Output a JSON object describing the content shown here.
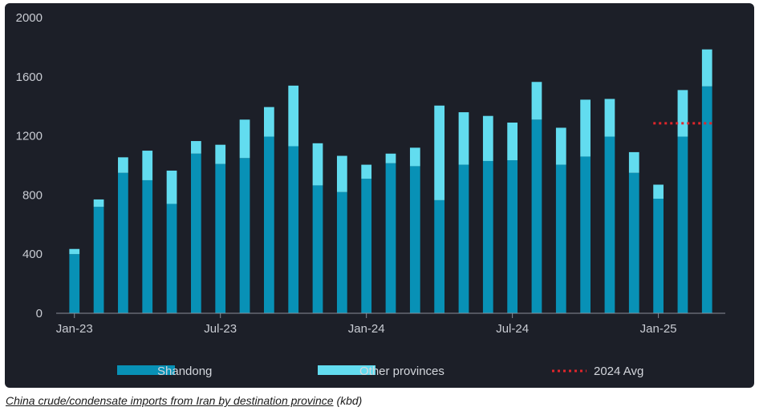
{
  "chart_data": {
    "type": "bar",
    "stacked": true,
    "title": "China crude/condensate imports from Iran by destination province",
    "unit": "(kbd)",
    "ylim": [
      0,
      2000
    ],
    "yticks": [
      0,
      400,
      800,
      1200,
      1600,
      2000
    ],
    "ytick_labels": [
      "0",
      "400",
      "800",
      "1200",
      "1600",
      "2000"
    ],
    "categories": [
      "Jan-23",
      "Feb-23",
      "Mar-23",
      "Apr-23",
      "May-23",
      "Jun-23",
      "Jul-23",
      "Aug-23",
      "Sep-23",
      "Oct-23",
      "Nov-23",
      "Dec-23",
      "Jan-24",
      "Feb-24",
      "Mar-24",
      "Apr-24",
      "May-24",
      "Jun-24",
      "Jul-24",
      "Aug-24",
      "Sep-24",
      "Oct-24",
      "Nov-24",
      "Dec-24",
      "Jan-25",
      "Feb-25",
      "Mar-25"
    ],
    "xtick_labels": [
      {
        "index": 0,
        "label": "Jan-23"
      },
      {
        "index": 6,
        "label": "Jul-23"
      },
      {
        "index": 12,
        "label": "Jan-24"
      },
      {
        "index": 18,
        "label": "Jul-24"
      },
      {
        "index": 24,
        "label": "Jan-25"
      }
    ],
    "series": [
      {
        "name": "Shandong",
        "color": "#0891b6",
        "values": [
          400,
          720,
          950,
          900,
          740,
          1080,
          1010,
          1050,
          1195,
          1130,
          865,
          820,
          910,
          1015,
          995,
          765,
          1005,
          1030,
          1035,
          1310,
          1005,
          1060,
          1195,
          950,
          775,
          1195,
          1535
        ]
      },
      {
        "name": "Other provinces",
        "color": "#62dcef",
        "values": [
          35,
          50,
          105,
          200,
          225,
          85,
          130,
          260,
          200,
          410,
          285,
          245,
          95,
          65,
          125,
          640,
          355,
          305,
          255,
          255,
          250,
          385,
          255,
          140,
          95,
          315,
          250
        ]
      }
    ],
    "reference_line": {
      "name": "2024 Avg",
      "value": 1285,
      "color": "#e0262b",
      "from_index": 24,
      "to_index": 26
    },
    "legend": {
      "position": "bottom",
      "entries": [
        "Shandong",
        "Other provinces",
        "2024 Avg"
      ]
    }
  },
  "caption": {
    "link_text": "China crude/condensate imports from Iran by destination province",
    "suffix": " (kbd)"
  }
}
